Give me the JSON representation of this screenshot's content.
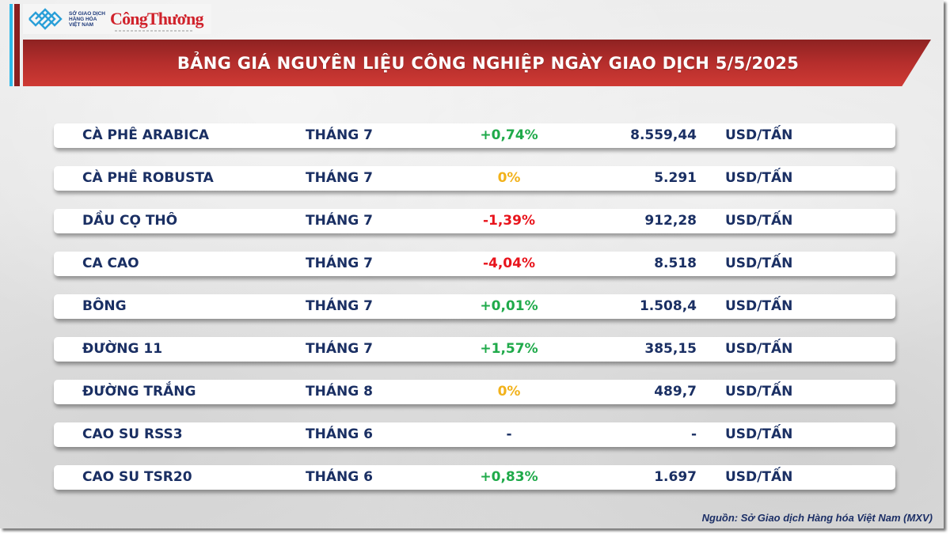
{
  "logo": {
    "org_lines": [
      "SỞ GIAO DỊCH",
      "HÀNG HÓA",
      "VIỆT NAM"
    ],
    "brand": "CôngThương"
  },
  "title": "BẢNG GIÁ NGUYÊN LIỆU CÔNG NGHIỆP NGÀY GIAO DỊCH 5/5/2025",
  "colors": {
    "banner_red": "#b52e2c",
    "accent_cyan": "#2bb8e8",
    "text_navy": "#1a2f63",
    "positive": "#1faa4a",
    "neutral": "#f2b21b",
    "negative": "#e8141c"
  },
  "rows": [
    {
      "name": "CÀ PHÊ ARABICA",
      "month": "THÁNG 7",
      "change": "+0,74%",
      "trend": "positive",
      "price": "8.559,44",
      "unit": "USD/TẤN"
    },
    {
      "name": "CÀ PHÊ ROBUSTA",
      "month": "THÁNG 7",
      "change": "0%",
      "trend": "neutral",
      "price": "5.291",
      "unit": "USD/TẤN"
    },
    {
      "name": "DẦU CỌ THÔ",
      "month": "THÁNG 7",
      "change": "-1,39%",
      "trend": "negative",
      "price": "912,28",
      "unit": "USD/TẤN"
    },
    {
      "name": "CA CAO",
      "month": "THÁNG 7",
      "change": "-4,04%",
      "trend": "negative",
      "price": "8.518",
      "unit": "USD/TẤN"
    },
    {
      "name": "BÔNG",
      "month": "THÁNG 7",
      "change": "+0,01%",
      "trend": "positive",
      "price": "1.508,4",
      "unit": "USD/TẤN"
    },
    {
      "name": "ĐƯỜNG 11",
      "month": "THÁNG 7",
      "change": "+1,57%",
      "trend": "positive",
      "price": "385,15",
      "unit": "USD/TẤN"
    },
    {
      "name": "ĐƯỜNG TRẮNG",
      "month": "THÁNG 8",
      "change": "0%",
      "trend": "neutral",
      "price": "489,7",
      "unit": "USD/TẤN"
    },
    {
      "name": "CAO SU RSS3",
      "month": "THÁNG 6",
      "change": "-",
      "trend": "none",
      "price": "-",
      "unit": "USD/TẤN"
    },
    {
      "name": "CAO SU TSR20",
      "month": "THÁNG 6",
      "change": "+0,83%",
      "trend": "positive",
      "price": "1.697",
      "unit": "USD/TẤN"
    }
  ],
  "source": "Nguồn: Sở Giao dịch Hàng hóa Việt Nam (MXV)"
}
